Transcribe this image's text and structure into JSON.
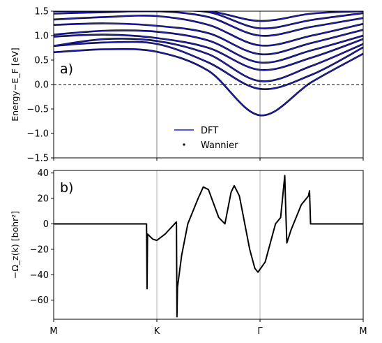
{
  "chart_data": [
    {
      "panel": "a)",
      "type": "line",
      "ylabel": "Energy−E_F [eV]",
      "ylim": [
        -1.5,
        1.5
      ],
      "yticks": [
        1.5,
        1.0,
        0.5,
        0.0,
        -0.5,
        -1.0,
        -1.5
      ],
      "ytick_labels": [
        "1.5",
        "1.0",
        "0.5",
        "0.0",
        "−0.5",
        "−1.0",
        "−1.5"
      ],
      "xticks": [
        0,
        1,
        2,
        3
      ],
      "x_high_symmetry_lines": [
        1,
        2
      ],
      "fermi_level": 0.0,
      "legend": {
        "position": "lower-center",
        "entries": [
          {
            "label": "DFT",
            "color": "#1f1fcc",
            "marker": "line"
          },
          {
            "label": "Wannier",
            "color": "#000000",
            "marker": "dot"
          }
        ]
      },
      "series": [
        {
          "points": [
            [
              0,
              0.66
            ],
            [
              0.5,
              0.72
            ],
            [
              1,
              0.67
            ],
            [
              1.5,
              0.28
            ],
            [
              2,
              -0.63
            ],
            [
              2.5,
              0.05
            ],
            [
              3,
              0.63
            ]
          ]
        },
        {
          "points": [
            [
              0,
              0.79
            ],
            [
              0.5,
              0.86
            ],
            [
              1,
              0.83
            ],
            [
              1.5,
              0.45
            ],
            [
              2,
              -0.09
            ],
            [
              2.5,
              0.2
            ],
            [
              3,
              0.76
            ]
          ]
        },
        {
          "points": [
            [
              0,
              0.79
            ],
            [
              0.5,
              0.93
            ],
            [
              1,
              0.89
            ],
            [
              1.5,
              0.62
            ],
            [
              2,
              0.07
            ],
            [
              2.5,
              0.38
            ],
            [
              3,
              0.83
            ]
          ]
        },
        {
          "points": [
            [
              0,
              0.98
            ],
            [
              0.5,
              1.02
            ],
            [
              1,
              0.95
            ],
            [
              1.5,
              0.75
            ],
            [
              2,
              0.3
            ],
            [
              2.5,
              0.55
            ],
            [
              3,
              0.93
            ]
          ]
        },
        {
          "points": [
            [
              0,
              1.02
            ],
            [
              0.5,
              1.1
            ],
            [
              1,
              1.08
            ],
            [
              1.5,
              0.9
            ],
            [
              2,
              0.45
            ],
            [
              2.5,
              0.7
            ],
            [
              3,
              1.0
            ]
          ]
        },
        {
          "points": [
            [
              0,
              1.22
            ],
            [
              0.5,
              1.25
            ],
            [
              1,
              1.2
            ],
            [
              1.5,
              1.05
            ],
            [
              2,
              0.62
            ],
            [
              2.5,
              0.85
            ],
            [
              3,
              1.12
            ]
          ]
        },
        {
          "points": [
            [
              0,
              1.33
            ],
            [
              0.5,
              1.38
            ],
            [
              1,
              1.4
            ],
            [
              1.5,
              1.22
            ],
            [
              2,
              0.8
            ],
            [
              2.5,
              1.0
            ],
            [
              3,
              1.24
            ]
          ]
        },
        {
          "points": [
            [
              0,
              1.45
            ],
            [
              0.5,
              1.48
            ],
            [
              1,
              1.5
            ],
            [
              1.5,
              1.38
            ],
            [
              2,
              1.0
            ],
            [
              2.5,
              1.18
            ],
            [
              3,
              1.36
            ]
          ]
        },
        {
          "points": [
            [
              0,
              1.5
            ],
            [
              0.5,
              1.5
            ],
            [
              1,
              1.5
            ],
            [
              1.5,
              1.48
            ],
            [
              2,
              1.15
            ],
            [
              2.5,
              1.32
            ],
            [
              3,
              1.46
            ]
          ]
        },
        {
          "points": [
            [
              0,
              1.5
            ],
            [
              0.5,
              1.5
            ],
            [
              1,
              1.5
            ],
            [
              1.5,
              1.5
            ],
            [
              2,
              1.3
            ],
            [
              2.5,
              1.45
            ],
            [
              3,
              1.5
            ]
          ]
        }
      ]
    },
    {
      "panel": "b)",
      "type": "line",
      "ylabel": "−Ω_z(k) [bohr²]",
      "ylim": [
        -75,
        42
      ],
      "yticks": [
        40,
        20,
        0,
        -20,
        -40,
        -60
      ],
      "ytick_labels": [
        "40",
        "20",
        "0",
        "−20",
        "−40",
        "−60"
      ],
      "xticks": [
        0,
        1,
        2,
        3
      ],
      "xtick_labels": [
        "M",
        "K",
        "Γ",
        "M"
      ],
      "x_high_symmetry_lines": [
        1,
        2
      ],
      "color": "#000000",
      "points": [
        [
          0,
          0
        ],
        [
          0.9,
          0
        ],
        [
          0.905,
          -51
        ],
        [
          0.91,
          -8
        ],
        [
          0.96,
          -12
        ],
        [
          1.0,
          -13
        ],
        [
          1.08,
          -8
        ],
        [
          1.19,
          1.5
        ],
        [
          1.195,
          -73
        ],
        [
          1.2,
          -50
        ],
        [
          1.24,
          -25
        ],
        [
          1.3,
          0
        ],
        [
          1.4,
          20
        ],
        [
          1.45,
          29
        ],
        [
          1.5,
          27
        ],
        [
          1.6,
          5
        ],
        [
          1.66,
          0
        ],
        [
          1.72,
          25
        ],
        [
          1.75,
          30
        ],
        [
          1.8,
          22
        ],
        [
          1.9,
          -20
        ],
        [
          1.95,
          -35
        ],
        [
          1.98,
          -38
        ],
        [
          2.05,
          -30
        ],
        [
          2.15,
          0
        ],
        [
          2.2,
          5
        ],
        [
          2.24,
          38
        ],
        [
          2.25,
          10
        ],
        [
          2.26,
          -15
        ],
        [
          2.3,
          -5
        ],
        [
          2.4,
          15
        ],
        [
          2.47,
          22
        ],
        [
          2.48,
          26
        ],
        [
          2.49,
          0
        ],
        [
          3.0,
          0
        ]
      ]
    }
  ]
}
